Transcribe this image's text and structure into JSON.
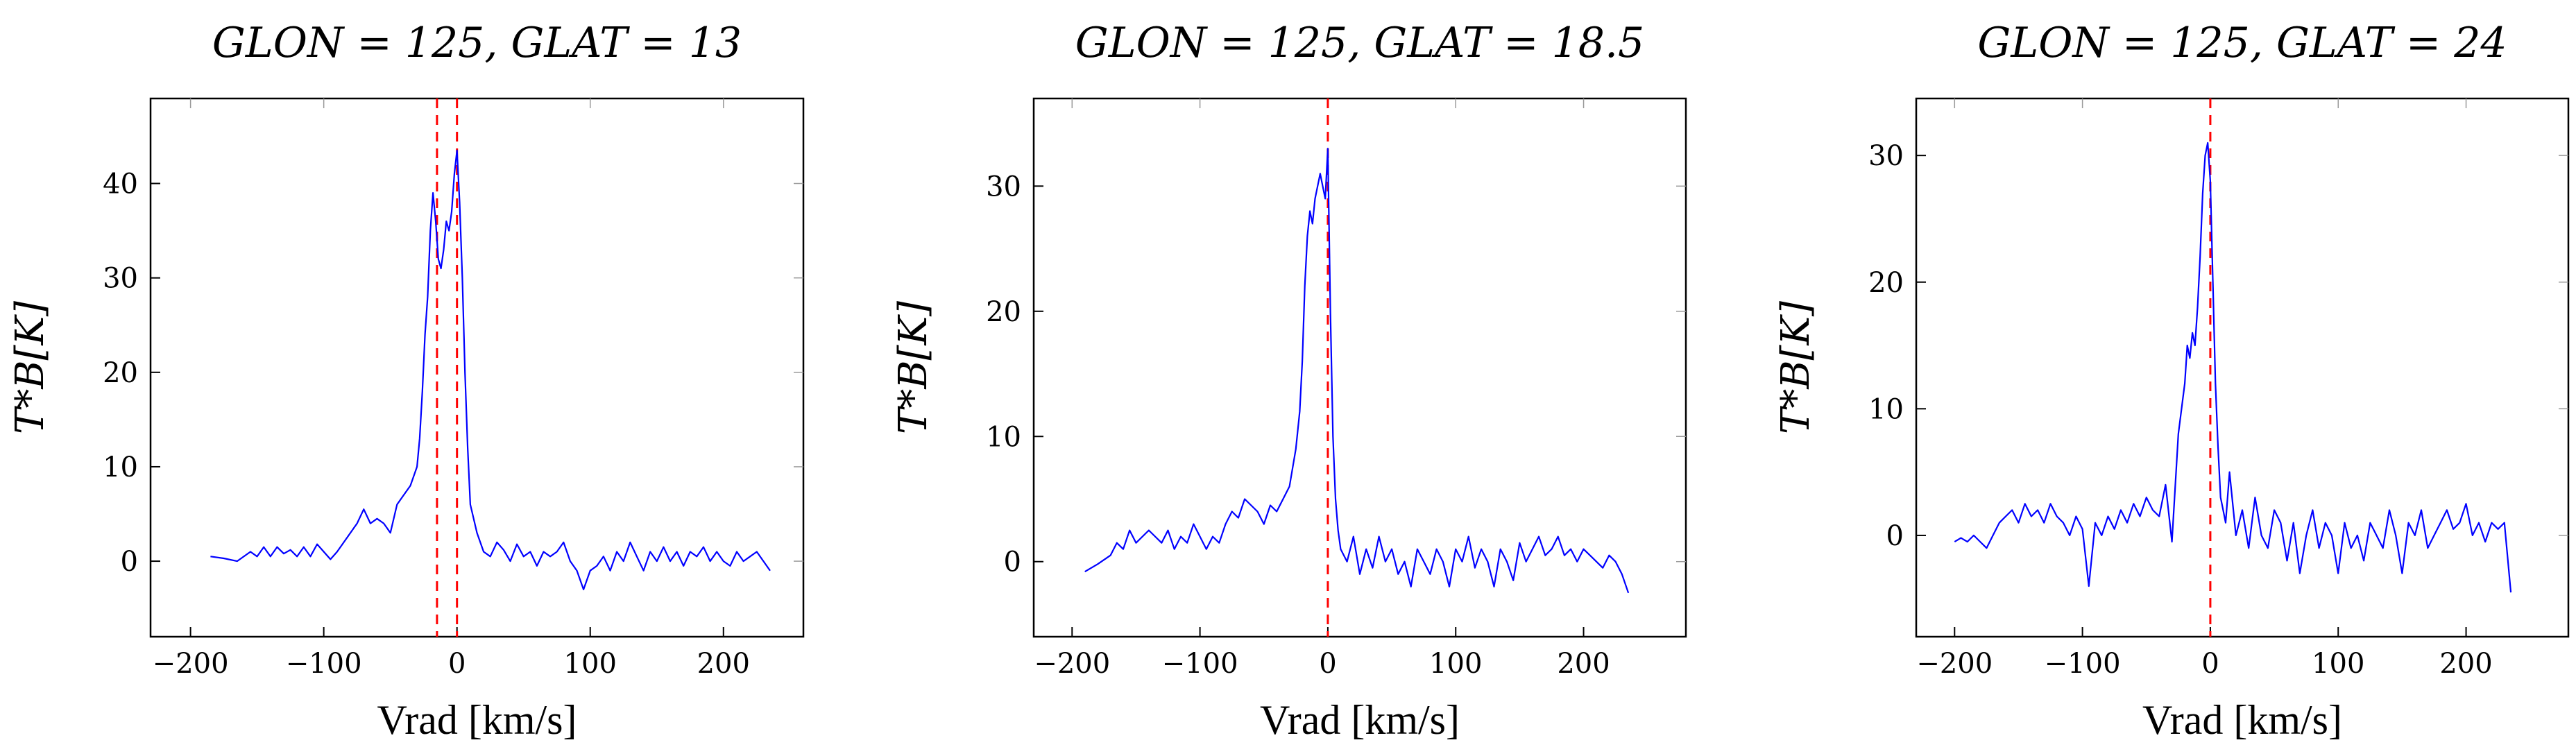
{
  "chart_data": [
    {
      "type": "line",
      "title": "GLON = 125, GLAT = 13",
      "xlabel": "Vrad [km/s]",
      "ylabel": "T*B[K]",
      "xlim": [
        -230,
        260
      ],
      "ylim": [
        -8,
        49
      ],
      "xticks": [
        -200,
        -100,
        0,
        100,
        200
      ],
      "yticks": [
        0,
        10,
        20,
        30,
        40
      ],
      "ref_lines_x": [
        -15,
        0
      ],
      "series": [
        {
          "color": "#0000ff",
          "x": [
            -185,
            -175,
            -165,
            -155,
            -150,
            -145,
            -140,
            -135,
            -130,
            -125,
            -120,
            -115,
            -110,
            -105,
            -100,
            -95,
            -90,
            -85,
            -80,
            -75,
            -70,
            -65,
            -60,
            -55,
            -50,
            -45,
            -40,
            -35,
            -30,
            -28,
            -26,
            -24,
            -22,
            -20,
            -18,
            -16,
            -14,
            -12,
            -10,
            -8,
            -6,
            -4,
            -2,
            0,
            2,
            4,
            6,
            8,
            10,
            15,
            20,
            25,
            30,
            35,
            40,
            45,
            50,
            55,
            60,
            65,
            70,
            75,
            80,
            85,
            90,
            95,
            100,
            105,
            110,
            115,
            120,
            125,
            130,
            135,
            140,
            145,
            150,
            155,
            160,
            165,
            170,
            175,
            180,
            185,
            190,
            195,
            200,
            205,
            210,
            215,
            220,
            225,
            230,
            235
          ],
          "y": [
            0.5,
            0.3,
            0,
            1,
            0.5,
            1.5,
            0.5,
            1.5,
            0.8,
            1.2,
            0.5,
            1.5,
            0.5,
            1.8,
            1,
            0.2,
            1,
            2,
            3,
            4,
            5.5,
            4,
            4.5,
            4,
            3,
            6,
            7,
            8,
            10,
            13,
            18,
            24,
            28,
            35,
            39,
            36,
            32,
            31,
            33,
            36,
            35,
            37,
            41,
            43.5,
            38,
            30,
            20,
            12,
            6,
            3,
            1,
            0.5,
            2,
            1.2,
            0,
            1.8,
            0.5,
            1,
            -0.5,
            1,
            0.5,
            1,
            2,
            0,
            -1,
            -3,
            -1,
            -0.5,
            0.5,
            -1,
            1,
            0,
            2,
            0.5,
            -1,
            1,
            0,
            1.5,
            0,
            1,
            -0.5,
            1,
            0.5,
            1.5,
            0,
            1,
            0,
            -0.5,
            1,
            0,
            0.5,
            1,
            0,
            -1
          ]
        }
      ]
    },
    {
      "type": "line",
      "title": "GLON = 125, GLAT = 18.5",
      "xlabel": "Vrad [km/s]",
      "ylabel": "T*B[K]",
      "xlim": [
        -230,
        280
      ],
      "ylim": [
        -6,
        37
      ],
      "xticks": [
        -200,
        -100,
        0,
        100,
        200
      ],
      "yticks": [
        0,
        10,
        20,
        30
      ],
      "ref_lines_x": [
        0
      ],
      "series": [
        {
          "color": "#0000ff",
          "x": [
            -190,
            -180,
            -170,
            -165,
            -160,
            -155,
            -150,
            -145,
            -140,
            -135,
            -130,
            -125,
            -120,
            -115,
            -110,
            -105,
            -100,
            -95,
            -90,
            -85,
            -80,
            -75,
            -70,
            -65,
            -60,
            -55,
            -50,
            -45,
            -40,
            -35,
            -30,
            -25,
            -22,
            -20,
            -18,
            -16,
            -14,
            -12,
            -10,
            -8,
            -6,
            -4,
            -2,
            0,
            2,
            4,
            6,
            8,
            10,
            15,
            20,
            25,
            30,
            35,
            40,
            45,
            50,
            55,
            60,
            65,
            70,
            75,
            80,
            85,
            90,
            95,
            100,
            105,
            110,
            115,
            120,
            125,
            130,
            135,
            140,
            145,
            150,
            155,
            160,
            165,
            170,
            175,
            180,
            185,
            190,
            195,
            200,
            205,
            210,
            215,
            220,
            225,
            230,
            235
          ],
          "y": [
            -0.8,
            -0.2,
            0.5,
            1.5,
            1,
            2.5,
            1.5,
            2,
            2.5,
            2,
            1.5,
            2.5,
            1,
            2,
            1.5,
            3,
            2,
            1,
            2,
            1.5,
            3,
            4,
            3.5,
            5,
            4.5,
            4,
            3,
            4.5,
            4,
            5,
            6,
            9,
            12,
            16,
            22,
            26,
            28,
            27,
            29,
            30,
            31,
            30,
            29,
            33,
            20,
            10,
            5,
            2.5,
            1,
            0,
            2,
            -1,
            1,
            -0.5,
            2,
            0,
            1,
            -1,
            0,
            -2,
            1,
            0,
            -1,
            1,
            0,
            -2,
            1,
            0,
            2,
            -0.5,
            1,
            0,
            -2,
            1,
            0,
            -1.5,
            1.5,
            0,
            1,
            2,
            0.5,
            1,
            2,
            0.5,
            1,
            0,
            1,
            0.5,
            0,
            -0.5,
            0.5,
            0,
            -1,
            -2.5
          ]
        }
      ]
    },
    {
      "type": "line",
      "title": "GLON = 125, GLAT = 24",
      "xlabel": "Vrad [km/s]",
      "ylabel": "T*B[K]",
      "xlim": [
        -230,
        280
      ],
      "ylim": [
        -8,
        34.5
      ],
      "xticks": [
        -200,
        -100,
        0,
        100,
        200
      ],
      "yticks": [
        0,
        10,
        20,
        30
      ],
      "ref_lines_x": [
        0
      ],
      "series": [
        {
          "color": "#0000ff",
          "x": [
            -200,
            -195,
            -190,
            -185,
            -180,
            -175,
            -170,
            -165,
            -160,
            -155,
            -150,
            -145,
            -140,
            -135,
            -130,
            -125,
            -120,
            -115,
            -110,
            -105,
            -100,
            -95,
            -90,
            -85,
            -80,
            -75,
            -70,
            -65,
            -60,
            -55,
            -50,
            -45,
            -40,
            -35,
            -30,
            -25,
            -20,
            -18,
            -16,
            -14,
            -12,
            -10,
            -8,
            -6,
            -4,
            -2,
            0,
            2,
            4,
            6,
            8,
            10,
            12,
            15,
            20,
            25,
            30,
            35,
            40,
            45,
            50,
            55,
            60,
            65,
            70,
            75,
            80,
            85,
            90,
            95,
            100,
            105,
            110,
            115,
            120,
            125,
            130,
            135,
            140,
            145,
            150,
            155,
            160,
            165,
            170,
            175,
            180,
            185,
            190,
            195,
            200,
            205,
            210,
            215,
            220,
            225,
            230,
            235
          ],
          "y": [
            -0.5,
            -0.2,
            -0.5,
            0,
            -0.5,
            -1,
            0,
            1,
            1.5,
            2,
            1,
            2.5,
            1.5,
            2,
            1,
            2.5,
            1.5,
            1,
            0,
            1.5,
            0.5,
            -4,
            1,
            0,
            1.5,
            0.5,
            2,
            1,
            2.5,
            1.5,
            3,
            2,
            1.5,
            4,
            -0.5,
            8,
            12,
            15,
            14,
            16,
            15,
            18,
            22,
            27,
            30,
            31,
            28,
            20,
            12,
            7,
            3,
            2,
            1,
            5,
            0,
            2,
            -1,
            3,
            0,
            -1,
            2,
            1,
            -2,
            1,
            -3,
            0,
            2,
            -1,
            1,
            0,
            -3,
            1,
            -1,
            0,
            -2,
            1,
            0,
            -1,
            2,
            0,
            -3,
            1,
            0,
            2,
            -1,
            0,
            1,
            2,
            0.5,
            1,
            2.5,
            0,
            1,
            -0.5,
            1,
            0.5,
            1,
            -4.5
          ]
        }
      ]
    }
  ]
}
